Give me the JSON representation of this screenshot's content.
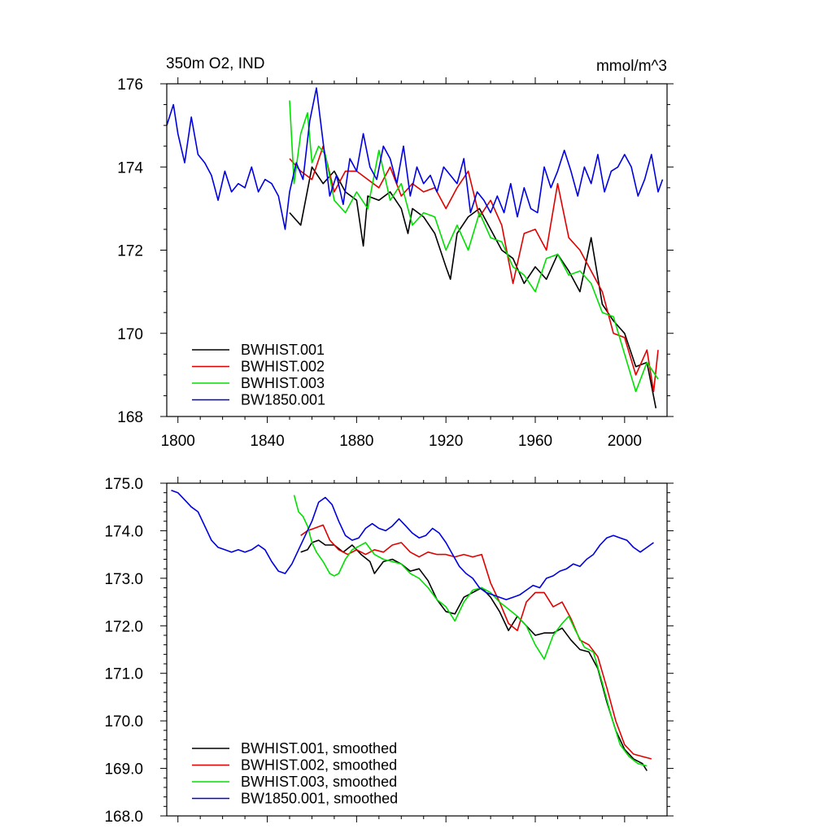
{
  "chart_data": [
    {
      "type": "line",
      "title_left": "350m O2, IND",
      "title_right": "mmol/m^3",
      "xlim": [
        1795,
        2019
      ],
      "ylim": [
        168,
        176
      ],
      "x_ticks": [
        1800,
        1840,
        1880,
        1920,
        1960,
        2000
      ],
      "y_ticks": [
        168,
        170,
        172,
        174,
        176
      ],
      "y_tick_labels": [
        "168",
        "170",
        "172",
        "174",
        "176"
      ],
      "legend_position": "bottom-left",
      "grid": false,
      "series": [
        {
          "name": "BWHIST.001",
          "color": "#000000",
          "x": [
            1850,
            1855,
            1860,
            1865,
            1870,
            1875,
            1880,
            1883,
            1885,
            1890,
            1895,
            1900,
            1903,
            1905,
            1910,
            1915,
            1920,
            1922,
            1925,
            1930,
            1935,
            1940,
            1945,
            1950,
            1955,
            1960,
            1965,
            1970,
            1975,
            1980,
            1985,
            1990,
            1995,
            2000,
            2005,
            2010,
            2014
          ],
          "y": [
            172.9,
            172.6,
            174.0,
            173.6,
            173.9,
            173.4,
            173.2,
            172.1,
            173.3,
            173.2,
            173.4,
            173.0,
            172.4,
            173.0,
            172.8,
            172.4,
            171.6,
            171.3,
            172.4,
            172.8,
            173.0,
            172.5,
            172.0,
            171.8,
            171.2,
            171.6,
            171.3,
            171.9,
            171.5,
            171.0,
            172.3,
            170.7,
            170.3,
            170.0,
            169.2,
            169.3,
            168.2
          ]
        },
        {
          "name": "BWHIST.002",
          "color": "#e00000",
          "x": [
            1850,
            1855,
            1860,
            1865,
            1870,
            1875,
            1880,
            1885,
            1890,
            1895,
            1900,
            1905,
            1910,
            1915,
            1920,
            1925,
            1930,
            1935,
            1940,
            1945,
            1950,
            1955,
            1960,
            1965,
            1970,
            1975,
            1980,
            1985,
            1990,
            1995,
            2000,
            2005,
            2010,
            2013,
            2015
          ],
          "y": [
            174.2,
            173.9,
            173.7,
            174.5,
            173.4,
            173.9,
            173.9,
            173.7,
            173.5,
            174.0,
            173.3,
            173.6,
            173.4,
            173.5,
            173.0,
            173.5,
            173.9,
            172.8,
            173.2,
            172.6,
            171.2,
            172.4,
            172.5,
            172.0,
            173.6,
            172.3,
            172.0,
            171.5,
            171.0,
            170.0,
            169.9,
            169.0,
            169.6,
            168.6,
            169.6
          ]
        },
        {
          "name": "BWHIST.003",
          "color": "#00e000",
          "x": [
            1850,
            1852,
            1855,
            1858,
            1860,
            1863,
            1866,
            1870,
            1875,
            1880,
            1885,
            1890,
            1895,
            1900,
            1905,
            1910,
            1915,
            1920,
            1925,
            1930,
            1935,
            1940,
            1945,
            1950,
            1955,
            1960,
            1965,
            1970,
            1975,
            1980,
            1985,
            1990,
            1995,
            2000,
            2005,
            2010,
            2015
          ],
          "y": [
            175.6,
            173.6,
            174.8,
            175.3,
            174.1,
            174.5,
            174.3,
            173.2,
            172.9,
            173.4,
            173.0,
            174.4,
            173.2,
            173.6,
            172.6,
            172.9,
            172.8,
            172.0,
            172.6,
            172.0,
            172.9,
            172.3,
            172.2,
            171.6,
            171.4,
            171.0,
            171.8,
            171.9,
            171.4,
            171.5,
            171.2,
            170.5,
            170.4,
            169.5,
            168.6,
            169.3,
            168.9
          ]
        },
        {
          "name": "BW1850.001",
          "color": "#0000e0",
          "x": [
            1795,
            1798,
            1800,
            1803,
            1806,
            1809,
            1812,
            1815,
            1818,
            1821,
            1824,
            1827,
            1830,
            1833,
            1836,
            1839,
            1842,
            1845,
            1848,
            1850,
            1853,
            1856,
            1859,
            1862,
            1865,
            1868,
            1871,
            1874,
            1877,
            1880,
            1883,
            1886,
            1889,
            1892,
            1895,
            1898,
            1901,
            1904,
            1907,
            1910,
            1913,
            1916,
            1919,
            1922,
            1925,
            1928,
            1931,
            1934,
            1937,
            1940,
            1943,
            1946,
            1949,
            1952,
            1955,
            1958,
            1961,
            1964,
            1967,
            1970,
            1973,
            1976,
            1979,
            1982,
            1985,
            1988,
            1991,
            1994,
            1997,
            2000,
            2003,
            2006,
            2009,
            2012,
            2015,
            2017
          ],
          "y": [
            175.0,
            175.5,
            174.8,
            174.1,
            175.2,
            174.3,
            174.1,
            173.8,
            173.2,
            173.9,
            173.4,
            173.6,
            173.5,
            174.0,
            173.4,
            173.7,
            173.6,
            173.3,
            172.5,
            173.4,
            174.1,
            173.7,
            175.1,
            175.9,
            174.6,
            173.3,
            173.8,
            173.1,
            174.2,
            173.9,
            174.8,
            174.0,
            173.7,
            174.5,
            174.2,
            173.6,
            174.5,
            173.3,
            174.0,
            173.6,
            173.8,
            173.4,
            174.0,
            173.8,
            173.6,
            174.2,
            172.9,
            173.4,
            173.2,
            172.9,
            173.3,
            172.9,
            173.6,
            172.8,
            173.5,
            173.0,
            172.9,
            174.0,
            173.5,
            173.9,
            174.4,
            173.9,
            173.3,
            174.0,
            173.6,
            174.3,
            173.4,
            173.9,
            174.0,
            174.3,
            174.0,
            173.3,
            173.7,
            174.3,
            173.4,
            173.7
          ]
        }
      ]
    },
    {
      "type": "line",
      "xlim": [
        1795,
        2019
      ],
      "ylim": [
        168.0,
        175.0
      ],
      "x_ticks": [
        1800,
        1840,
        1880,
        1920,
        1960,
        2000
      ],
      "y_ticks": [
        168,
        169,
        170,
        171,
        172,
        173,
        174,
        175
      ],
      "y_tick_labels": [
        "168.0",
        "169.0",
        "170.0",
        "171.0",
        "172.0",
        "173.0",
        "174.0",
        "175.0"
      ],
      "legend_position": "bottom-left",
      "grid": false,
      "series": [
        {
          "name": "BWHIST.001, smoothed",
          "color": "#000000",
          "x": [
            1855,
            1858,
            1860,
            1863,
            1866,
            1870,
            1874,
            1878,
            1882,
            1886,
            1888,
            1892,
            1896,
            1900,
            1904,
            1908,
            1912,
            1916,
            1920,
            1924,
            1928,
            1932,
            1936,
            1940,
            1944,
            1948,
            1952,
            1956,
            1960,
            1964,
            1968,
            1972,
            1976,
            1980,
            1984,
            1988,
            1992,
            1996,
            2000,
            2004,
            2008,
            2010
          ],
          "y": [
            173.55,
            173.6,
            173.75,
            173.8,
            173.7,
            173.7,
            173.55,
            173.7,
            173.5,
            173.35,
            173.1,
            173.35,
            173.4,
            173.3,
            173.15,
            173.2,
            172.95,
            172.55,
            172.3,
            172.25,
            172.6,
            172.7,
            172.8,
            172.6,
            172.3,
            171.9,
            172.2,
            172.0,
            171.8,
            171.85,
            171.85,
            171.95,
            171.7,
            171.5,
            171.45,
            171.1,
            170.4,
            169.8,
            169.4,
            169.2,
            169.1,
            168.95
          ]
        },
        {
          "name": "BWHIST.002, smoothed",
          "color": "#e00000",
          "x": [
            1855,
            1858,
            1861,
            1865,
            1868,
            1872,
            1876,
            1880,
            1884,
            1888,
            1892,
            1896,
            1900,
            1904,
            1908,
            1912,
            1916,
            1920,
            1924,
            1928,
            1932,
            1936,
            1940,
            1944,
            1948,
            1952,
            1956,
            1960,
            1964,
            1968,
            1972,
            1976,
            1980,
            1984,
            1988,
            1992,
            1996,
            2000,
            2004,
            2008,
            2012
          ],
          "y": [
            173.9,
            174.0,
            174.05,
            174.12,
            173.8,
            173.6,
            173.5,
            173.6,
            173.5,
            173.6,
            173.55,
            173.7,
            173.75,
            173.55,
            173.45,
            173.55,
            173.5,
            173.5,
            173.45,
            173.5,
            173.45,
            173.5,
            172.9,
            172.5,
            172.05,
            171.9,
            172.5,
            172.7,
            172.7,
            172.4,
            172.5,
            172.15,
            171.7,
            171.6,
            171.35,
            170.7,
            170.0,
            169.5,
            169.3,
            169.25,
            169.2
          ]
        },
        {
          "name": "BWHIST.003, smoothed",
          "color": "#00e000",
          "x": [
            1852,
            1854,
            1856,
            1858,
            1860,
            1862,
            1865,
            1868,
            1870,
            1872,
            1875,
            1878,
            1880,
            1884,
            1888,
            1892,
            1896,
            1900,
            1904,
            1908,
            1912,
            1916,
            1920,
            1924,
            1928,
            1932,
            1936,
            1940,
            1944,
            1948,
            1952,
            1956,
            1960,
            1964,
            1968,
            1972,
            1975,
            1978,
            1982,
            1986,
            1990,
            1994,
            1998,
            2002,
            2006,
            2010
          ],
          "y": [
            174.75,
            174.4,
            174.3,
            174.1,
            173.75,
            173.55,
            173.35,
            173.1,
            173.05,
            173.1,
            173.4,
            173.6,
            173.65,
            173.75,
            173.5,
            173.4,
            173.35,
            173.3,
            173.1,
            173.0,
            172.8,
            172.55,
            172.4,
            172.1,
            172.5,
            172.75,
            172.8,
            172.7,
            172.5,
            172.35,
            172.2,
            172.0,
            171.6,
            171.3,
            171.8,
            172.05,
            172.2,
            171.9,
            171.55,
            171.45,
            170.8,
            170.1,
            169.5,
            169.25,
            169.1,
            169.05
          ]
        },
        {
          "name": "BW1850.001, smoothed",
          "color": "#0000e0",
          "x": [
            1797,
            1800,
            1803,
            1806,
            1809,
            1812,
            1815,
            1818,
            1821,
            1824,
            1827,
            1830,
            1833,
            1836,
            1839,
            1842,
            1845,
            1848,
            1851,
            1854,
            1857,
            1860,
            1863,
            1866,
            1869,
            1872,
            1875,
            1878,
            1881,
            1884,
            1887,
            1890,
            1893,
            1896,
            1899,
            1902,
            1905,
            1908,
            1911,
            1914,
            1917,
            1920,
            1923,
            1926,
            1929,
            1932,
            1935,
            1938,
            1941,
            1944,
            1947,
            1950,
            1953,
            1956,
            1959,
            1962,
            1965,
            1968,
            1971,
            1974,
            1977,
            1980,
            1983,
            1986,
            1989,
            1992,
            1995,
            1998,
            2001,
            2004,
            2007,
            2010,
            2013
          ],
          "y": [
            174.85,
            174.8,
            174.65,
            174.5,
            174.4,
            174.1,
            173.8,
            173.65,
            173.6,
            173.55,
            173.6,
            173.55,
            173.6,
            173.7,
            173.6,
            173.35,
            173.15,
            173.1,
            173.3,
            173.6,
            173.9,
            174.2,
            174.6,
            174.7,
            174.55,
            174.2,
            173.9,
            173.8,
            173.85,
            174.05,
            174.15,
            174.05,
            174.0,
            174.1,
            174.25,
            174.1,
            173.95,
            173.85,
            173.9,
            174.05,
            173.95,
            173.75,
            173.5,
            173.25,
            173.1,
            173.0,
            172.8,
            172.7,
            172.65,
            172.6,
            172.55,
            172.6,
            172.65,
            172.75,
            172.85,
            172.8,
            173.0,
            173.05,
            173.15,
            173.2,
            173.3,
            173.25,
            173.4,
            173.5,
            173.7,
            173.85,
            173.9,
            173.85,
            173.8,
            173.65,
            173.55,
            173.65,
            173.75
          ]
        }
      ]
    }
  ]
}
